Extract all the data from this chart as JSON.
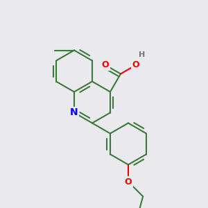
{
  "bg_color": "#eaeaee",
  "bond_color": "#3a7a3a",
  "bond_width": 1.5,
  "N_color": "#0000ee",
  "O_color": "#ee0000",
  "H_color": "#777777",
  "figsize": [
    3.0,
    3.0
  ],
  "dpi": 100,
  "xlim": [
    -1.5,
    1.5
  ],
  "ylim": [
    -1.5,
    1.5
  ]
}
